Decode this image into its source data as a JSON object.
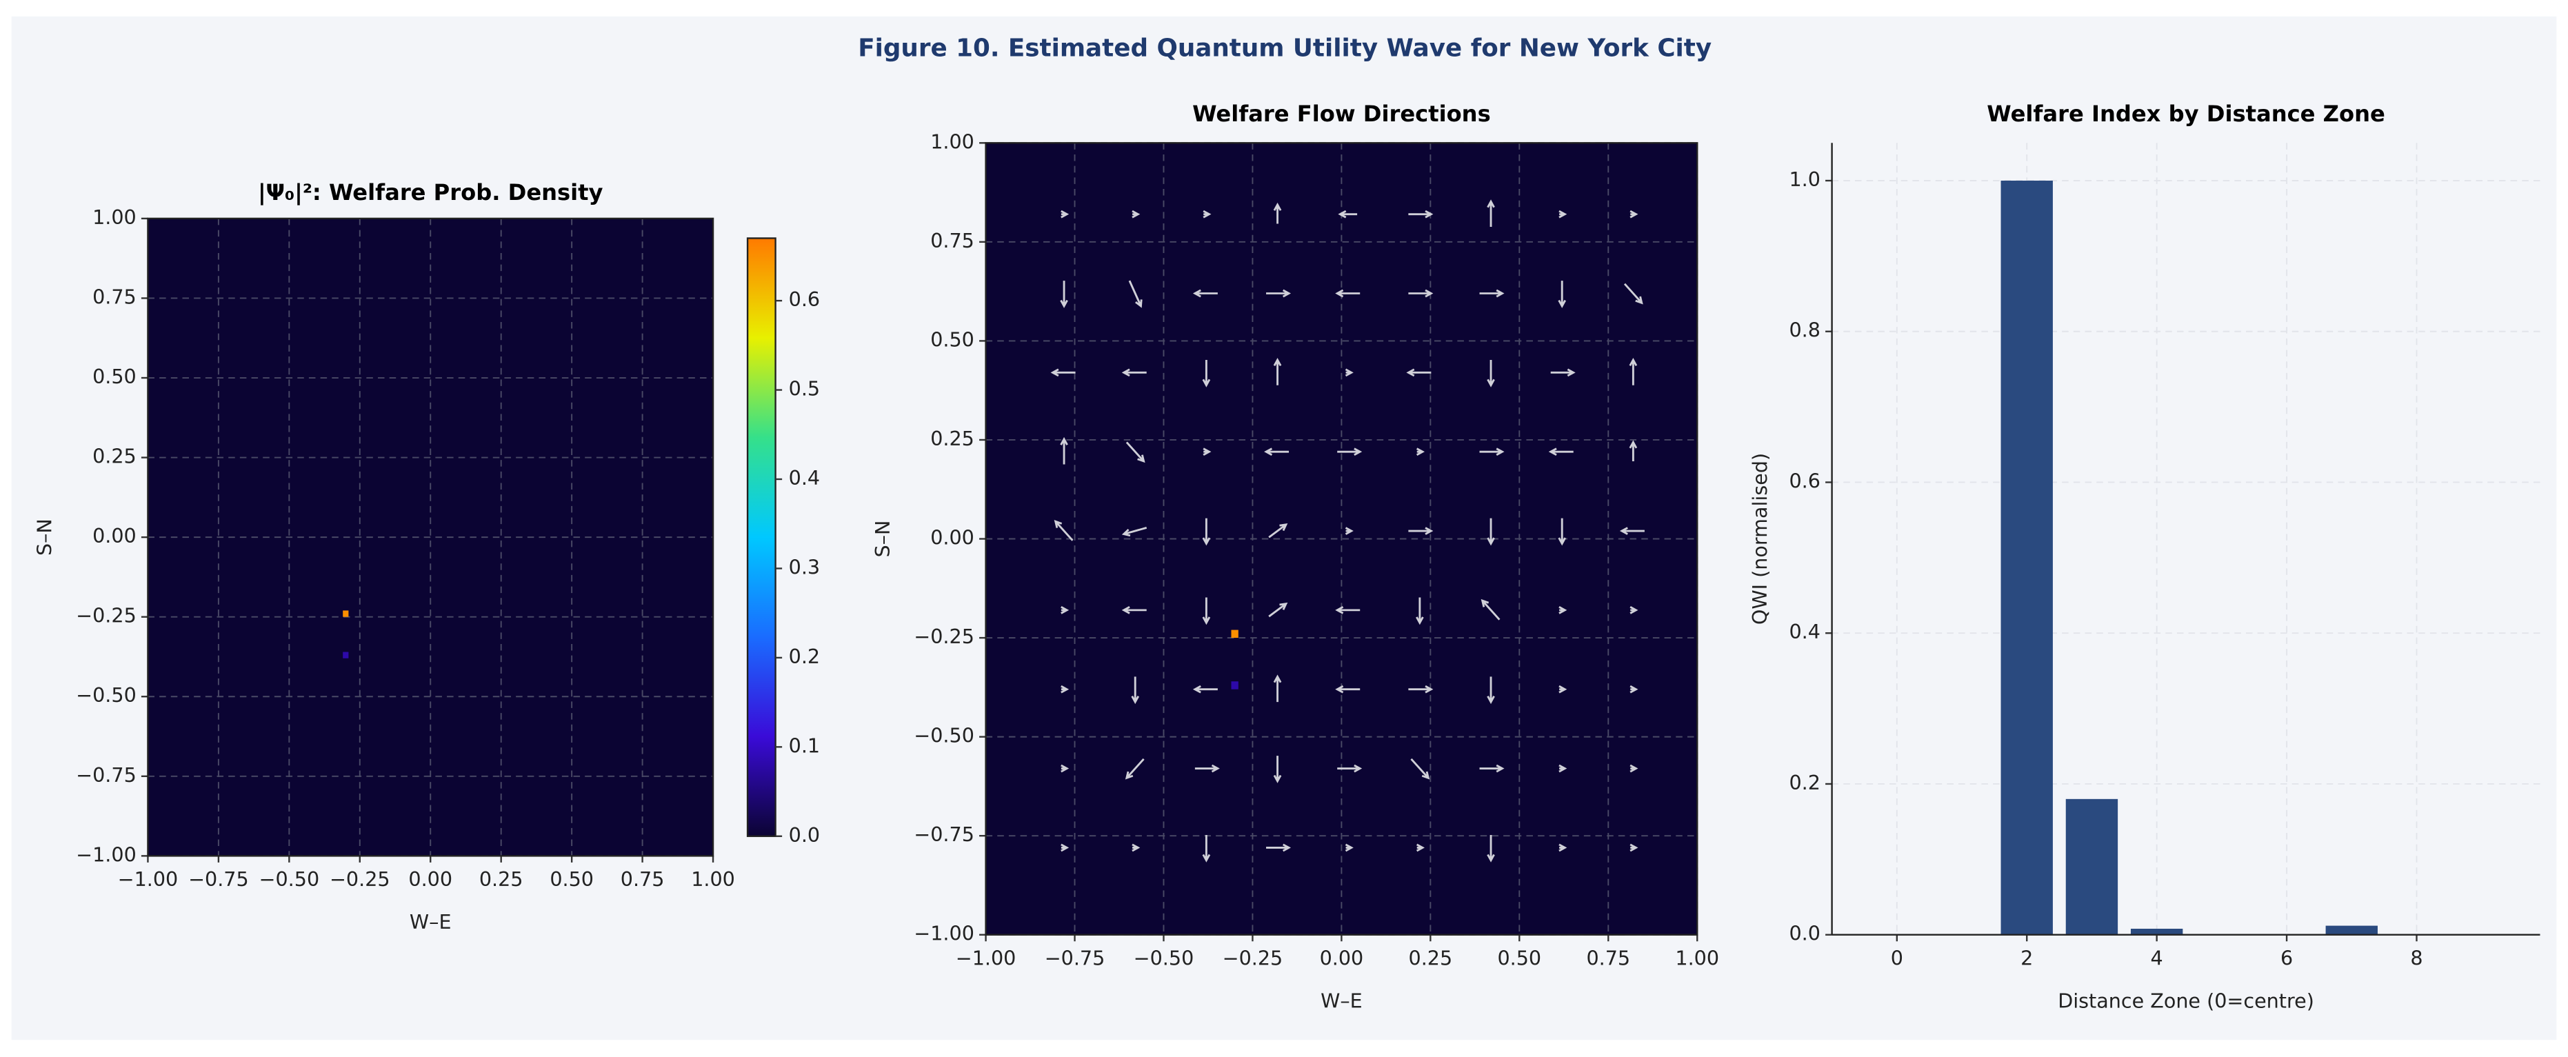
{
  "title": "Figure 10. Estimated Quantum Utility Wave for New York City",
  "chart_data": [
    {
      "type": "heatmap",
      "title": "|Ψ₀|²: Welfare Prob. Density",
      "x_label": "W–E",
      "y_label": "S–N",
      "xlim": [
        -1,
        1
      ],
      "ylim": [
        -1,
        1
      ],
      "xticks": [
        {
          "value": -1,
          "label": "−1.00"
        },
        {
          "value": -0.75,
          "label": "−0.75"
        },
        {
          "value": -0.5,
          "label": "−0.50"
        },
        {
          "value": -0.25,
          "label": "−0.25"
        },
        {
          "value": 0,
          "label": "0.00"
        },
        0.25,
        {
          "value": 0.5,
          "label": "0.50"
        },
        0.75,
        {
          "value": 1,
          "label": "1.00"
        }
      ],
      "yticks": [
        {
          "value": 1,
          "label": "1.00"
        },
        0.75,
        {
          "value": 0.5,
          "label": "0.50"
        },
        0.25,
        {
          "value": 0,
          "label": "0.00"
        },
        {
          "value": -0.25,
          "label": "−0.25"
        },
        {
          "value": -0.5,
          "label": "−0.50"
        },
        {
          "value": -0.75,
          "label": "−0.75"
        },
        {
          "value": -1,
          "label": "−1.00"
        }
      ],
      "grid": true,
      "colormap": [
        "#0b0433",
        "#3a0bd8",
        "#1a6cff",
        "#00c8ff",
        "#35e08a",
        "#e8f000",
        "#ff7a00"
      ],
      "clim": [
        0,
        0.67
      ],
      "cticks": [
        {
          "value": 0,
          "label": "0.0"
        },
        0.1,
        0.2,
        0.3,
        0.4,
        0.5,
        0.6
      ],
      "peaks": {
        "x": [
          -0.3,
          -0.3
        ],
        "y": [
          -0.24,
          -0.37
        ],
        "values": [
          0.65,
          0.08
        ]
      }
    },
    {
      "type": "quiver",
      "title": "Welfare Flow Directions",
      "x_label": "W–E",
      "y_label": "S–N",
      "xlim": [
        -1,
        1
      ],
      "ylim": [
        -1,
        1
      ],
      "xticks": [
        {
          "value": -1,
          "label": "−1.00"
        },
        {
          "value": -0.75,
          "label": "−0.75"
        },
        {
          "value": -0.5,
          "label": "−0.50"
        },
        {
          "value": -0.25,
          "label": "−0.25"
        },
        {
          "value": 0,
          "label": "0.00"
        },
        0.25,
        {
          "value": 0.5,
          "label": "0.50"
        },
        0.75,
        {
          "value": 1,
          "label": "1.00"
        }
      ],
      "yticks": [
        {
          "value": 1,
          "label": "1.00"
        },
        0.75,
        {
          "value": 0.5,
          "label": "0.50"
        },
        0.25,
        {
          "value": 0,
          "label": "0.00"
        },
        {
          "value": -0.25,
          "label": "−0.25"
        },
        {
          "value": -0.5,
          "label": "−0.50"
        },
        {
          "value": -0.75,
          "label": "−0.75"
        },
        {
          "value": -1,
          "label": "−1.00"
        }
      ],
      "grid": true,
      "colormap": [
        "#0b0433",
        "#3a0bd8",
        "#1a6cff",
        "#00c8ff",
        "#35e08a",
        "#e8f000",
        "#ff7a00"
      ],
      "clim": [
        0,
        0.67
      ],
      "peaks": {
        "x": [
          -0.3,
          -0.3
        ],
        "y": [
          -0.24,
          -0.37
        ],
        "values": [
          0.65,
          0.08
        ]
      },
      "arrow_color": "#d0d0d8",
      "x": [
        -0.78,
        -0.58,
        -0.38,
        -0.18,
        0.02,
        0.22,
        0.42,
        0.62,
        0.82,
        -0.78,
        -0.58,
        -0.38,
        -0.18,
        0.02,
        0.22,
        0.42,
        0.62,
        0.82,
        -0.78,
        -0.58,
        -0.38,
        -0.18,
        0.02,
        0.22,
        0.42,
        0.62,
        0.82,
        -0.78,
        -0.58,
        -0.38,
        -0.18,
        0.02,
        0.22,
        0.42,
        0.62,
        0.82,
        -0.78,
        -0.58,
        -0.38,
        -0.18,
        0.02,
        0.22,
        0.42,
        0.62,
        0.82,
        -0.78,
        -0.58,
        -0.38,
        -0.18,
        0.02,
        0.22,
        0.42,
        0.62,
        0.82,
        -0.78,
        -0.58,
        -0.38,
        -0.18,
        0.02,
        0.22,
        0.42,
        0.62,
        0.82,
        -0.78,
        -0.58,
        -0.38,
        -0.18,
        0.02,
        0.22,
        0.42,
        0.62,
        0.82,
        -0.78,
        -0.58,
        -0.38,
        -0.18,
        0.02,
        0.22,
        0.42,
        0.62,
        0.82
      ],
      "y": [
        0.82,
        0.82,
        0.82,
        0.82,
        0.82,
        0.82,
        0.82,
        0.82,
        0.82,
        0.62,
        0.62,
        0.62,
        0.62,
        0.62,
        0.62,
        0.62,
        0.62,
        0.62,
        0.42,
        0.42,
        0.42,
        0.42,
        0.42,
        0.42,
        0.42,
        0.42,
        0.42,
        0.22,
        0.22,
        0.22,
        0.22,
        0.22,
        0.22,
        0.22,
        0.22,
        0.22,
        0.02,
        0.02,
        0.02,
        0.02,
        0.02,
        0.02,
        0.02,
        0.02,
        0.02,
        -0.18,
        -0.18,
        -0.18,
        -0.18,
        -0.18,
        -0.18,
        -0.18,
        -0.18,
        -0.18,
        -0.38,
        -0.38,
        -0.38,
        -0.38,
        -0.38,
        -0.38,
        -0.38,
        -0.38,
        -0.38,
        -0.58,
        -0.58,
        -0.58,
        -0.58,
        -0.58,
        -0.58,
        -0.58,
        -0.58,
        -0.58,
        -0.78,
        -0.78,
        -0.78,
        -0.78,
        -0.78,
        -0.78,
        -0.78,
        -0.78,
        -0.78
      ],
      "u": [
        0.01,
        0.01,
        0.01,
        0,
        -0.03,
        0.04,
        0,
        0.01,
        0.01,
        0,
        0.02,
        -0.04,
        0.04,
        -0.04,
        0.04,
        0.04,
        0,
        0.03,
        -0.04,
        -0.04,
        0,
        0,
        0.01,
        -0.04,
        0,
        0.04,
        0,
        0,
        0.03,
        0.01,
        -0.04,
        0.04,
        0.01,
        0.04,
        -0.04,
        0,
        -0.03,
        -0.04,
        0,
        0.03,
        0.01,
        0.04,
        0,
        0,
        -0.04,
        0.01,
        -0.04,
        0,
        0.03,
        -0.04,
        0,
        -0.03,
        0.01,
        0.01,
        0.01,
        0,
        -0.04,
        0,
        -0.04,
        0.04,
        0,
        0.01,
        0.01,
        0.01,
        -0.03,
        0.04,
        0,
        0.04,
        0.03,
        0.04,
        0.01,
        0.01,
        0.01,
        0.01,
        0,
        0.04,
        0.01,
        0.01,
        0,
        0.01,
        0.01
      ],
      "v": [
        0,
        0,
        0,
        0.03,
        0,
        0,
        0.04,
        0,
        0,
        -0.04,
        -0.04,
        0,
        0,
        0,
        0,
        0,
        -0.04,
        -0.03,
        0,
        0,
        -0.04,
        0.04,
        0,
        0,
        -0.04,
        0,
        0.04,
        0.04,
        -0.03,
        0,
        0,
        0,
        0,
        0,
        0,
        0.03,
        0.03,
        -0.01,
        -0.04,
        0.02,
        0,
        0,
        -0.04,
        -0.04,
        0,
        0,
        0,
        -0.04,
        0.02,
        0,
        -0.04,
        0.03,
        0,
        0,
        0,
        -0.04,
        0,
        0.04,
        0,
        0,
        -0.04,
        0,
        0,
        0,
        -0.03,
        0,
        -0.04,
        0,
        -0.03,
        0,
        0,
        0,
        0,
        0,
        -0.04,
        0,
        0,
        0,
        -0.04,
        0,
        0
      ]
    },
    {
      "type": "bar",
      "title": "Welfare Index by Distance Zone",
      "x_label": "Distance Zone (0=centre)",
      "y_label": "QWI (normalised)",
      "x": [
        0,
        1,
        2,
        3,
        4,
        5,
        6,
        7,
        8,
        9
      ],
      "values": [
        0,
        0,
        1.0,
        0.18,
        0.008,
        0,
        0,
        0.012,
        0,
        0
      ],
      "color": "#2a4a7f",
      "xlim": [
        -1,
        9.9
      ],
      "ylim": [
        0,
        1.05
      ],
      "xticks": [
        0,
        2,
        4,
        6,
        8
      ],
      "yticks": [
        {
          "value": 0,
          "label": "0.0"
        },
        0.2,
        0.4,
        0.6,
        0.8,
        {
          "value": 1,
          "label": "1.0"
        }
      ],
      "grid": true
    }
  ]
}
